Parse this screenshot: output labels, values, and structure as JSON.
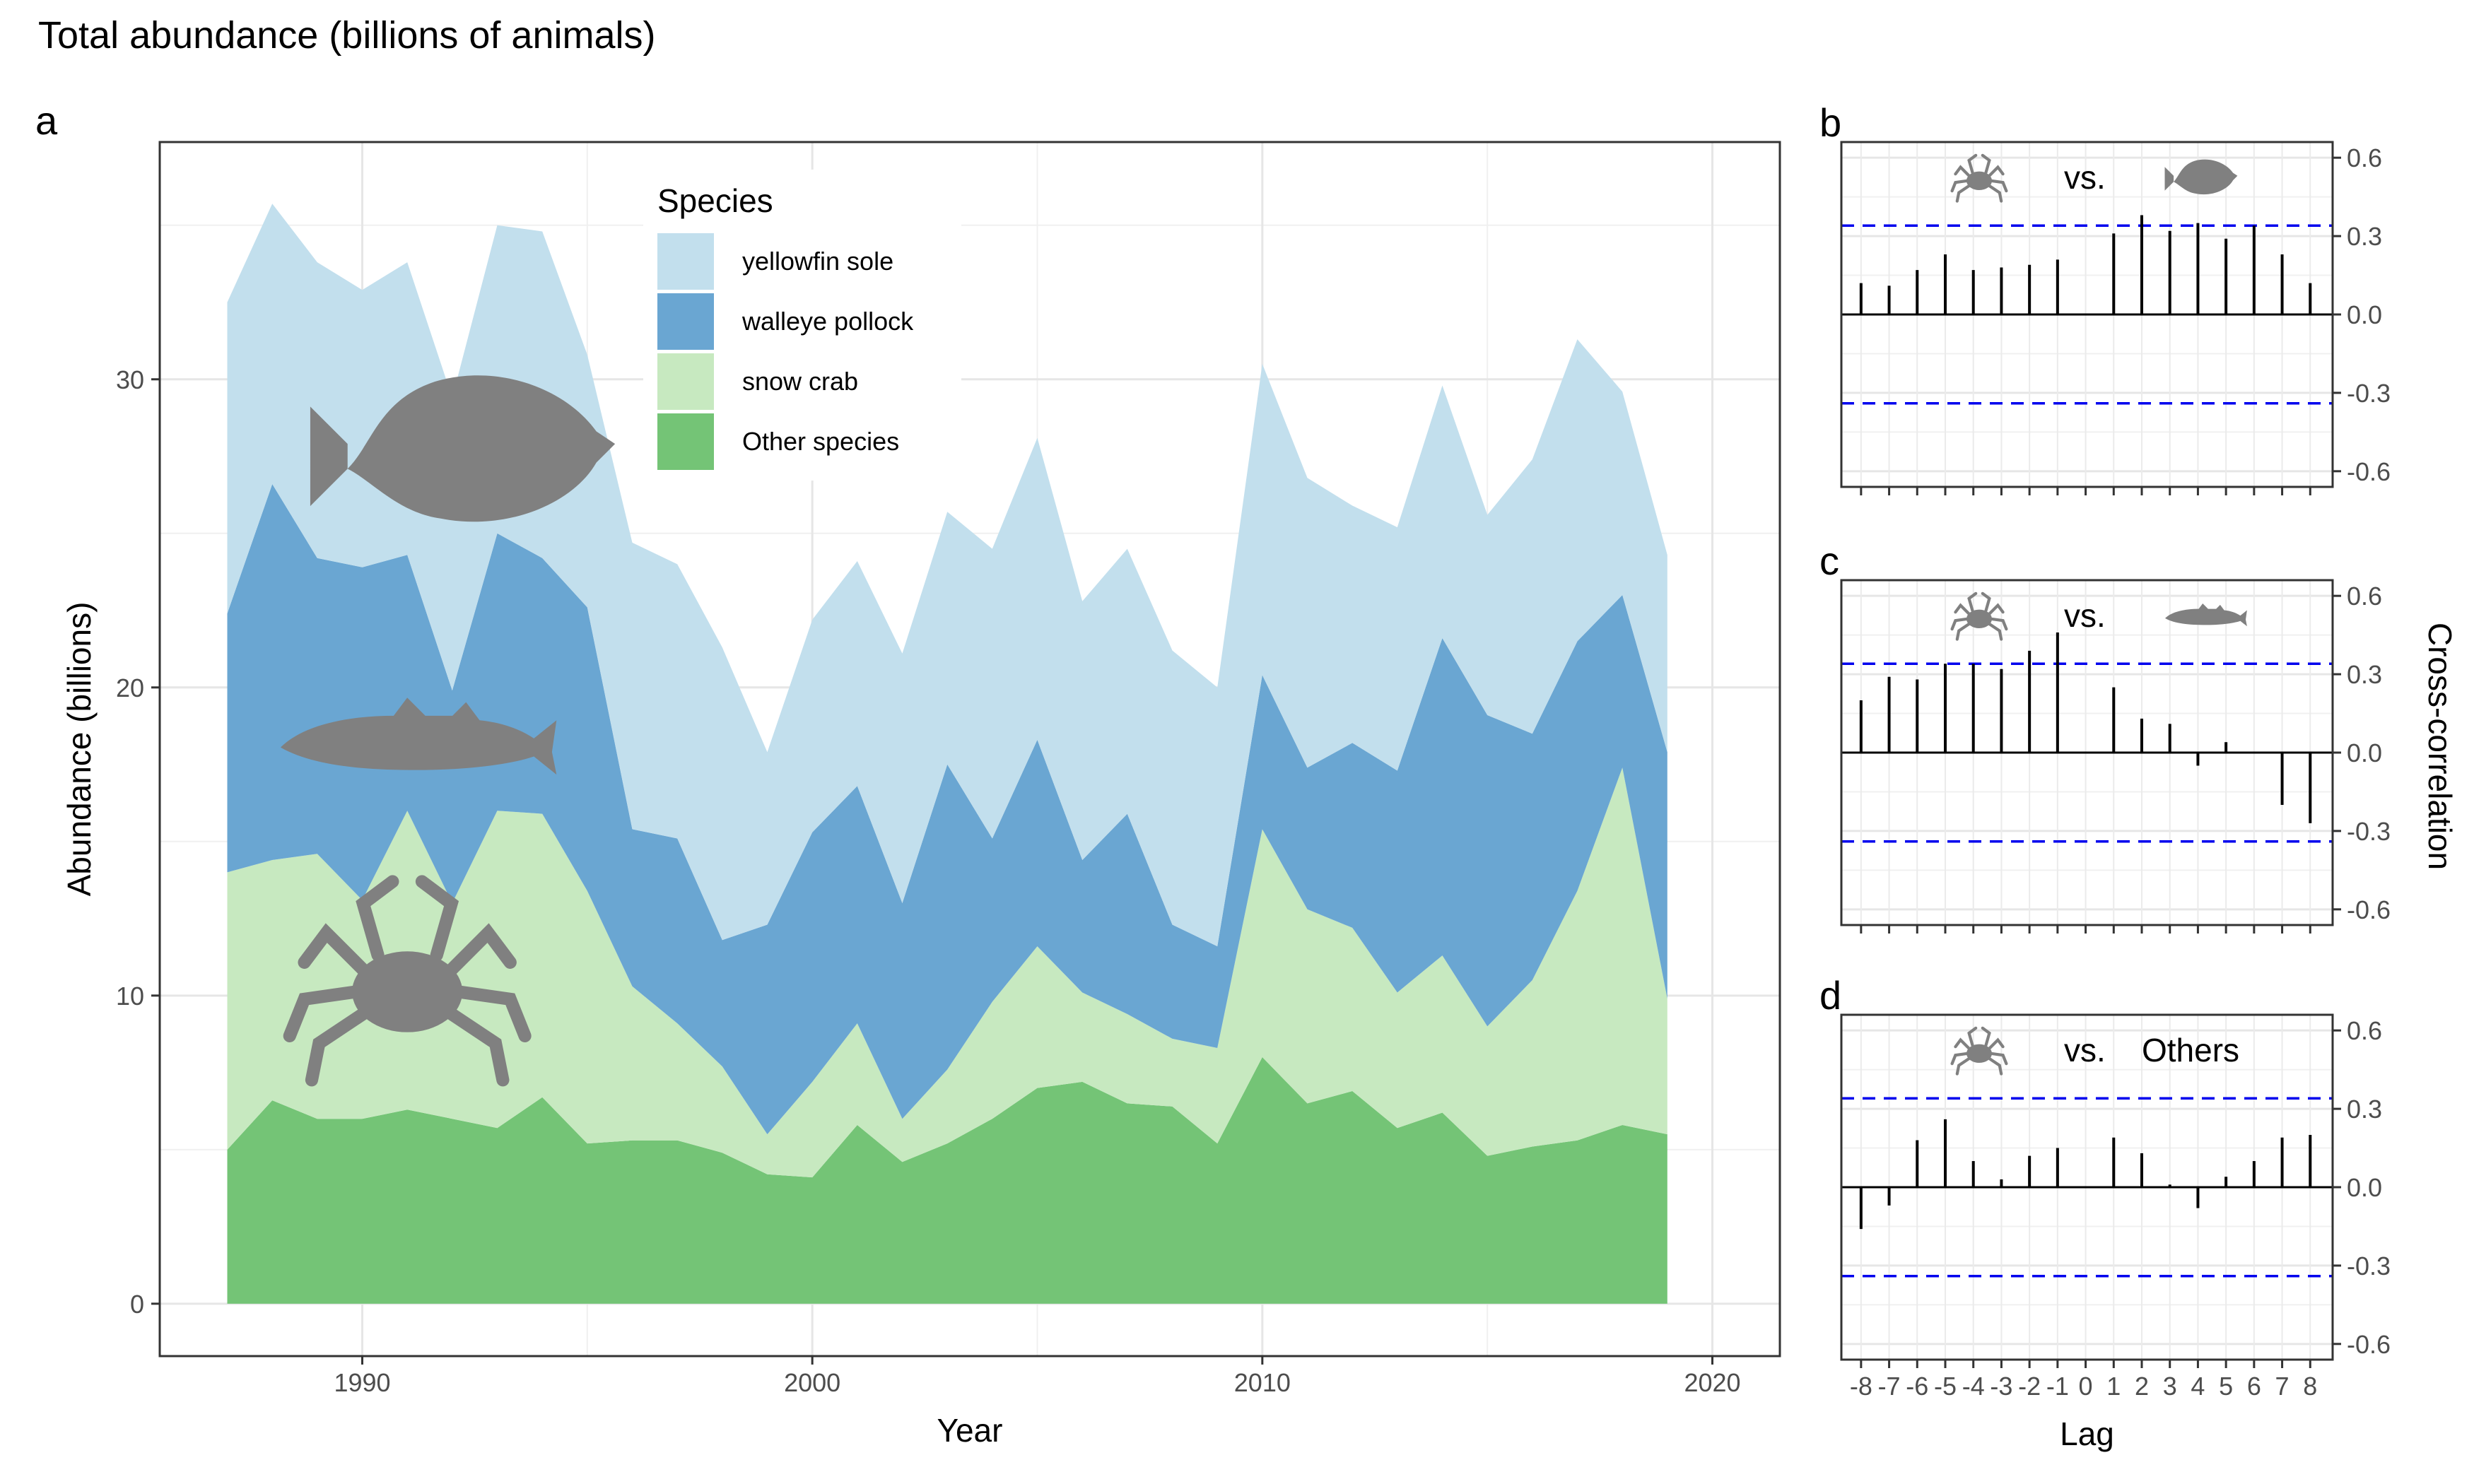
{
  "figure_title": "Total abundance (billions of animals)",
  "chart_data": [
    {
      "panel": "a",
      "type": "area",
      "stacked": true,
      "xlabel": "Year",
      "ylabel": "Abundance (billions)",
      "xlim": [
        1985.5,
        2021.5
      ],
      "ylim": [
        -1.7,
        37.7
      ],
      "xticks": [
        1990,
        2000,
        2010,
        2020
      ],
      "yticks": [
        0,
        10,
        20,
        30
      ],
      "grid": true,
      "legend": {
        "title": "Species",
        "placement": "top-center"
      },
      "x": [
        1987,
        1988,
        1989,
        1990,
        1991,
        1992,
        1993,
        1994,
        1995,
        1996,
        1997,
        1998,
        1999,
        2000,
        2001,
        2002,
        2003,
        2004,
        2005,
        2006,
        2007,
        2008,
        2009,
        2010,
        2011,
        2012,
        2013,
        2014,
        2015,
        2016,
        2017,
        2018,
        2019
      ],
      "series": [
        {
          "name": "Other species",
          "color": "#74c476",
          "values": [
            5.0,
            6.6,
            6.0,
            6.0,
            6.3,
            6.0,
            5.7,
            6.7,
            5.2,
            5.3,
            5.3,
            4.9,
            4.2,
            4.1,
            5.8,
            4.6,
            5.2,
            6.0,
            7.0,
            7.2,
            6.5,
            6.4,
            5.2,
            8.0,
            6.5,
            6.9,
            5.7,
            6.2,
            4.8,
            5.1,
            5.3,
            5.8,
            5.5
          ]
        },
        {
          "name": "snow crab",
          "color": "#c7e9c0",
          "values": [
            9.0,
            7.8,
            8.6,
            7.1,
            9.7,
            7.0,
            10.3,
            9.2,
            8.2,
            5.0,
            3.8,
            2.8,
            1.3,
            3.1,
            3.3,
            1.4,
            2.4,
            3.8,
            4.6,
            2.9,
            2.9,
            2.2,
            3.1,
            7.4,
            6.3,
            5.3,
            4.4,
            5.1,
            4.2,
            5.4,
            8.1,
            11.6,
            4.4
          ]
        },
        {
          "name": "walleye pollock",
          "color": "#6aa6d2",
          "values": [
            8.4,
            12.2,
            9.6,
            10.8,
            8.3,
            6.9,
            9.0,
            8.3,
            9.2,
            5.1,
            6.0,
            4.1,
            6.8,
            8.1,
            7.7,
            7.0,
            9.9,
            5.3,
            6.7,
            4.3,
            6.5,
            3.7,
            3.3,
            5.0,
            4.6,
            6.0,
            7.2,
            10.3,
            10.1,
            8.0,
            8.1,
            5.6,
            8.0
          ]
        },
        {
          "name": "yellowfin sole",
          "color": "#c2dfed",
          "values": [
            10.1,
            9.1,
            9.6,
            9.0,
            9.5,
            9.5,
            10.0,
            10.6,
            8.2,
            9.3,
            8.9,
            9.5,
            5.6,
            6.9,
            7.3,
            8.1,
            8.2,
            9.4,
            9.8,
            8.4,
            8.6,
            8.9,
            8.4,
            10.1,
            9.4,
            7.7,
            7.9,
            8.2,
            6.5,
            8.9,
            9.8,
            6.6,
            6.4
          ]
        }
      ]
    },
    {
      "panel": "b",
      "type": "bar",
      "comparison": {
        "left_icon": "snow-crab-icon",
        "vs": "vs.",
        "right_icon": "yellowfin-sole-icon"
      },
      "ylim": [
        -0.66,
        0.66
      ],
      "yticks": [
        -0.6,
        -0.3,
        0.0,
        0.3,
        0.6
      ],
      "ytick_labels": [
        "-0.6",
        "-0.3",
        "0.0",
        "0.3",
        "0.6"
      ],
      "significance_bound": 0.34,
      "lags": [
        -8,
        -7,
        -6,
        -5,
        -4,
        -3,
        -2,
        -1,
        0,
        1,
        2,
        3,
        4,
        5,
        6,
        7,
        8
      ],
      "values": [
        0.12,
        0.11,
        0.17,
        0.23,
        0.17,
        0.18,
        0.19,
        0.21,
        0.0,
        0.31,
        0.38,
        0.32,
        0.35,
        0.29,
        0.34,
        0.23,
        0.12
      ]
    },
    {
      "panel": "c",
      "type": "bar",
      "comparison": {
        "left_icon": "snow-crab-icon",
        "vs": "vs.",
        "right_icon": "walleye-pollock-icon"
      },
      "ylim": [
        -0.66,
        0.66
      ],
      "yticks": [
        -0.6,
        -0.3,
        0.0,
        0.3,
        0.6
      ],
      "ytick_labels": [
        "-0.6",
        "-0.3",
        "0.0",
        "0.3",
        "0.6"
      ],
      "significance_bound": 0.34,
      "lags": [
        -8,
        -7,
        -6,
        -5,
        -4,
        -3,
        -2,
        -1,
        0,
        1,
        2,
        3,
        4,
        5,
        6,
        7,
        8
      ],
      "values": [
        0.2,
        0.29,
        0.28,
        0.34,
        0.34,
        0.32,
        0.39,
        0.46,
        0.0,
        0.25,
        0.13,
        0.11,
        -0.05,
        0.04,
        0.0,
        -0.2,
        -0.27
      ]
    },
    {
      "panel": "d",
      "type": "bar",
      "comparison": {
        "left_icon": "snow-crab-icon",
        "vs": "vs.",
        "right_label": "Others"
      },
      "ylim": [
        -0.66,
        0.66
      ],
      "yticks": [
        -0.6,
        -0.3,
        0.0,
        0.3,
        0.6
      ],
      "ytick_labels": [
        "-0.6",
        "-0.3",
        "0.0",
        "0.3",
        "0.6"
      ],
      "significance_bound": 0.34,
      "xlabel": "Lag",
      "lags": [
        -8,
        -7,
        -6,
        -5,
        -4,
        -3,
        -2,
        -1,
        0,
        1,
        2,
        3,
        4,
        5,
        6,
        7,
        8
      ],
      "values": [
        -0.16,
        -0.07,
        0.18,
        0.26,
        0.1,
        0.03,
        0.12,
        0.15,
        0.0,
        0.19,
        0.13,
        0.01,
        -0.08,
        0.04,
        0.1,
        0.19,
        0.2
      ]
    }
  ],
  "shared_ylabel_right": "Cross-correlation"
}
